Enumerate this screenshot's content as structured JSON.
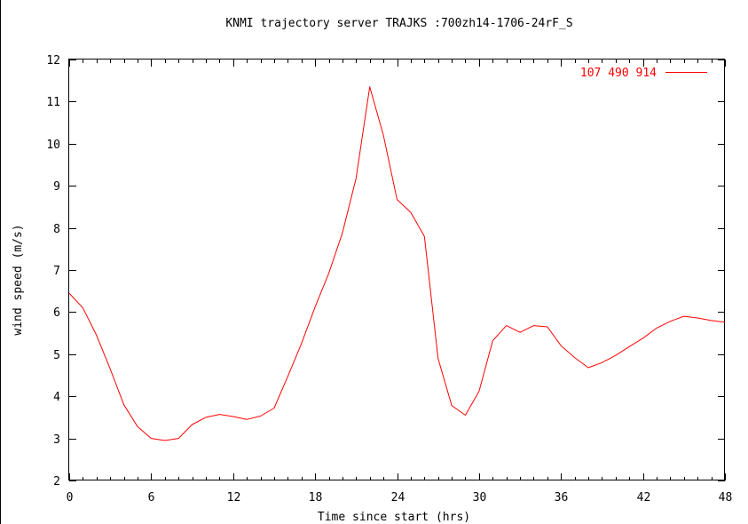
{
  "chart_data": {
    "type": "line",
    "title": "KNMI trajectory server TRAJKS :700zh14-1706-24rF_S",
    "xlabel": "Time since start (hrs)",
    "ylabel": "wind speed (m/s)",
    "xlim": [
      0,
      48
    ],
    "ylim": [
      2,
      12
    ],
    "xticks": [
      0,
      6,
      12,
      18,
      24,
      30,
      36,
      42,
      48
    ],
    "yticks": [
      2,
      3,
      4,
      5,
      6,
      7,
      8,
      9,
      10,
      11,
      12
    ],
    "xtick_labels": [
      "0",
      "6",
      "12",
      "18",
      "24",
      "30",
      "36",
      "42",
      "48"
    ],
    "ytick_labels": [
      "2",
      "3",
      "4",
      "5",
      "6",
      "7",
      "8",
      "9",
      "10",
      "11",
      "12"
    ],
    "legend_position": "top-right",
    "series": [
      {
        "name": "107 490 914",
        "color": "#ff0000",
        "x": [
          0,
          1,
          2,
          3,
          4,
          5,
          6,
          7,
          8,
          9,
          10,
          11,
          12,
          13,
          14,
          15,
          16,
          17,
          18,
          19,
          20,
          21,
          22,
          23,
          24,
          25,
          26,
          27,
          28,
          29,
          30,
          31,
          32,
          33,
          34,
          35,
          36,
          37,
          38,
          39,
          40,
          41,
          42,
          43,
          44,
          45,
          46,
          47,
          48
        ],
        "y": [
          6.45,
          6.1,
          5.45,
          4.65,
          3.8,
          3.28,
          3.0,
          2.95,
          3.0,
          3.33,
          3.5,
          3.57,
          3.52,
          3.45,
          3.53,
          3.72,
          4.47,
          5.25,
          6.12,
          6.92,
          7.88,
          9.18,
          11.35,
          10.2,
          8.67,
          8.37,
          7.8,
          4.9,
          3.78,
          3.55,
          4.12,
          5.32,
          5.68,
          5.52,
          5.68,
          5.65,
          5.2,
          4.92,
          4.68,
          4.8,
          4.97,
          5.18,
          5.38,
          5.62,
          5.78,
          5.9,
          5.86,
          5.8,
          5.76
        ]
      }
    ]
  }
}
